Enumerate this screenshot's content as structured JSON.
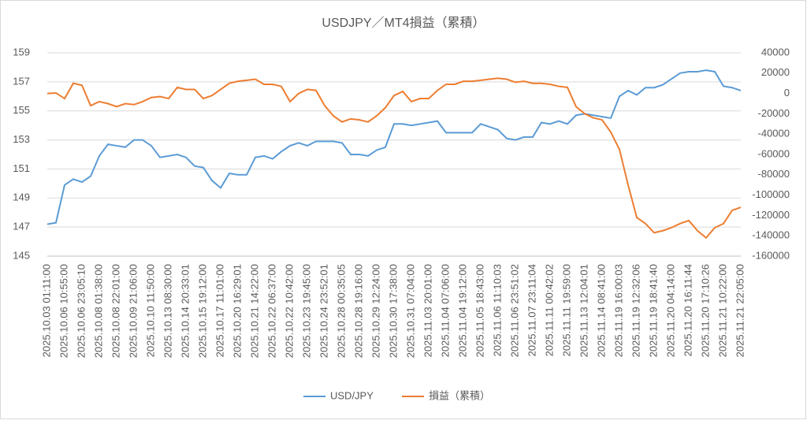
{
  "chart_data": {
    "type": "line",
    "title": "USDJPY／MT4損益（累積）",
    "categories": [
      "2025.10.03 01:11:00",
      null,
      "2025.10.06 10:55:00",
      null,
      "2025.10.06 23:05:10",
      null,
      "2025.10.08 01:38:00",
      null,
      "2025.10.08 22:01:00",
      null,
      "2025.10.09 21:06:00",
      null,
      "2025.10.10 11:50:00",
      null,
      "2025.10.13 08:30:00",
      null,
      "2025.10.14 20:33:01",
      null,
      "2025.10.15 19:12:00",
      null,
      "2025.10.17 11:01:00",
      null,
      "2025.10.20 16:29:01",
      null,
      "2025.10.21 14:22:00",
      null,
      "2025.10.22 06:37:00",
      null,
      "2025.10.22 10:42:00",
      null,
      "2025.10.23 19:45:00",
      null,
      "2025.10.24 23:52:01",
      null,
      "2025.10.28 00:35:05",
      null,
      "2025.10.28 19:16:00",
      null,
      "2025.10.29 12:24:00",
      null,
      "2025.10.30 17:38:00",
      null,
      "2025.10.31 07:04:00",
      null,
      "2025.11.03 20:01:00",
      null,
      "2025.11.04 07:06:00",
      null,
      "2025.11.04 19:12:00",
      null,
      "2025.11.05 18:43:00",
      null,
      "2025.11.06 11:10:03",
      null,
      "2025.11.06 23:51:02",
      null,
      "2025.11.07 23:11:04",
      null,
      "2025.11.11 00:42:02",
      null,
      "2025.11.11 19:59:00",
      null,
      "2025.11.13 12:04:01",
      null,
      "2025.11.14 08:41:00",
      null,
      "2025.11.19 16:00:03",
      null,
      "2025.11.19 12:32:06",
      null,
      "2025.11.19 18:41:40",
      null,
      "2025.11.20 04:14:00",
      null,
      "2025.11.20 16:11:44",
      null,
      "2025.11.20 17:10:26",
      null,
      "2025.11.21 10:22:00",
      null,
      "2025.11.21 22:05:00"
    ],
    "series": [
      {
        "name": "USD/JPY",
        "color": "#5b9bd5",
        "values": [
          147.2,
          147.3,
          149.9,
          150.3,
          150.1,
          150.5,
          151.9,
          152.7,
          152.6,
          152.5,
          153.0,
          153.0,
          152.6,
          151.8,
          151.9,
          152.0,
          151.8,
          151.2,
          151.1,
          150.2,
          149.7,
          150.7,
          150.6,
          150.6,
          151.8,
          151.9,
          151.7,
          152.2,
          152.6,
          152.8,
          152.6,
          152.9,
          152.9,
          152.9,
          152.8,
          152.0,
          152.0,
          151.9,
          152.3,
          152.5,
          154.1,
          154.1,
          154.0,
          154.1,
          154.2,
          154.3,
          153.5,
          153.5,
          153.5,
          153.5,
          154.1,
          153.9,
          153.7,
          153.1,
          153.0,
          153.2,
          153.2,
          154.2,
          154.1,
          154.3,
          154.1,
          154.7,
          154.8,
          154.7,
          154.6,
          154.5,
          156.0,
          156.4,
          156.1,
          156.6,
          156.6,
          156.8,
          157.2,
          157.6,
          157.7,
          157.7,
          157.8,
          157.7,
          156.7,
          156.6,
          156.4
        ]
      },
      {
        "name": "損益（累積）",
        "color": "#ed7d31",
        "axis": "y2",
        "values": [
          0,
          500,
          -5000,
          10000,
          8000,
          -12000,
          -8000,
          -10000,
          -13000,
          -10000,
          -11000,
          -8000,
          -4000,
          -3000,
          -5000,
          6000,
          4000,
          4000,
          -5000,
          -2000,
          4000,
          10000,
          12000,
          13000,
          14000,
          9000,
          9000,
          7000,
          -8000,
          0,
          4000,
          3000,
          -12000,
          -22000,
          -28000,
          -25000,
          -26000,
          -28000,
          -22000,
          -14000,
          -2000,
          2000,
          -8000,
          -5000,
          -5000,
          3000,
          9000,
          9000,
          12000,
          12000,
          13000,
          14000,
          15000,
          14000,
          11000,
          12000,
          10000,
          10000,
          9000,
          7000,
          6000,
          -13000,
          -20000,
          -24000,
          -26000,
          -38000,
          -55000,
          -90000,
          -122000,
          -128000,
          -137000,
          -135000,
          -132000,
          -128000,
          -125000,
          -135000,
          -142000,
          -132000,
          -128000,
          -115000,
          -112000
        ]
      }
    ],
    "ylim": [
      145,
      159
    ],
    "yticks": [
      145,
      147,
      149,
      151,
      153,
      155,
      157,
      159
    ],
    "y2lim": [
      -160000,
      40000
    ],
    "y2ticks": [
      -160000,
      -140000,
      -120000,
      -100000,
      -80000,
      -60000,
      -40000,
      -20000,
      0,
      20000,
      40000
    ],
    "grid": true,
    "legend": "bottom"
  }
}
